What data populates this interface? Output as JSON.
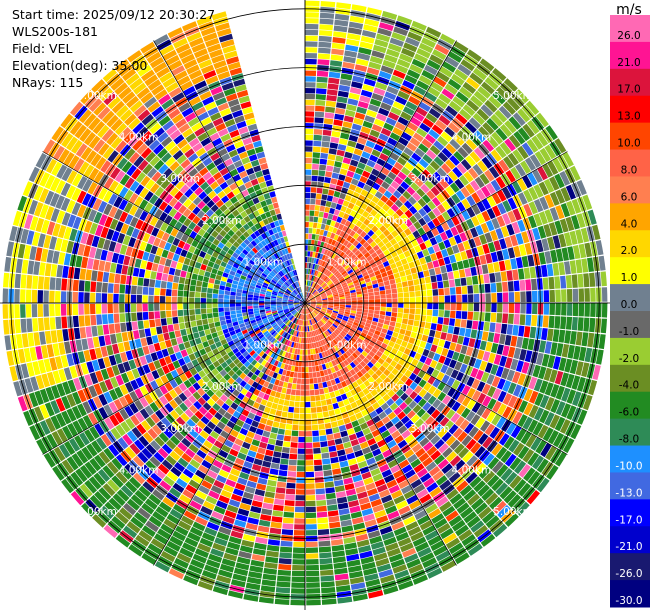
{
  "header": {
    "start_time": "Start time: 2025/09/12 20:30:27",
    "instrument": "WLS200s-181",
    "field": "Field: VEL",
    "elevation": "Elevation(deg): 35.00",
    "nrays": "NRays: 115"
  },
  "chart_data": {
    "type": "heatmap",
    "projection": "polar-ppi",
    "field": "VEL",
    "units": "m/s",
    "elevation_deg": 35.0,
    "n_rays": 115,
    "missing_sector_deg": [
      343,
      360
    ],
    "range_rings_km": [
      1.0,
      2.0,
      3.0,
      4.0,
      5.0
    ],
    "ring_labels": [
      "1.00km",
      "2.00km",
      "3.00km",
      "4.00km",
      "5.00km"
    ],
    "colorbar": {
      "label": "m/s",
      "ticks": [
        "26.0",
        "21.0",
        "17.0",
        "13.0",
        "10.0",
        "8.0",
        "6.0",
        "4.0",
        "2.0",
        "1.0",
        "0.0",
        "-1.0",
        "-2.0",
        "-4.0",
        "-6.0",
        "-8.0",
        "-10.0",
        "-13.0",
        "-17.0",
        "-21.0",
        "-26.0",
        "-30.0"
      ],
      "colors": [
        "#ff69b4",
        "#ff1493",
        "#dc143c",
        "#ff0000",
        "#ff4500",
        "#ff6347",
        "#ff7f50",
        "#ffa500",
        "#ffd700",
        "#ffff00",
        "#708090",
        "#696969",
        "#9acd32",
        "#6b8e23",
        "#228b22",
        "#2e8b57",
        "#1e90ff",
        "#4169e1",
        "#0000ff",
        "#0000cd",
        "#191970",
        "#000080"
      ]
    },
    "grid": true
  }
}
